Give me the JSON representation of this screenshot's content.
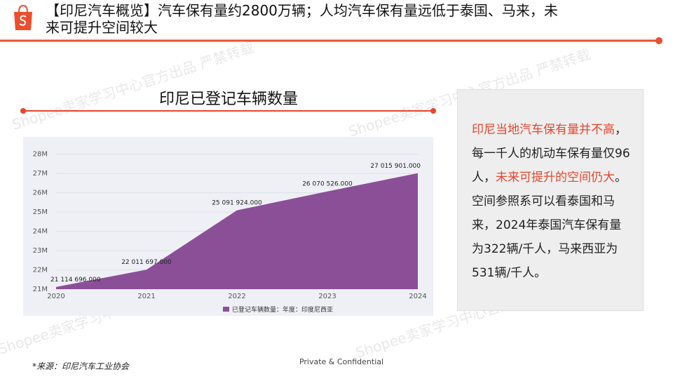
{
  "header": {
    "title_line1": "【印尼汽车概览】汽车保有量约2800万辆；人均汽车保有量远低于泰国、马来，未",
    "title_line2": "来可提升空间较大"
  },
  "watermark": "Shopee卖家学习中心官方出品 严禁转载",
  "chart_data": {
    "type": "area",
    "title": "印尼已登记车辆数量",
    "color": "#8b4f98",
    "x": [
      2020,
      2021,
      2022,
      2023,
      2024
    ],
    "xlim": [
      2020,
      2024
    ],
    "xticks": [
      2020,
      2021,
      2022,
      2023,
      2024
    ],
    "series": [
      {
        "name": "已登记车辆数量：年度：印度尼西亚",
        "color": "#8b4f98",
        "values": [
          21114696,
          22011697,
          25091924,
          26070526,
          27015901
        ],
        "value_labels": [
          "21 114 696.000",
          "22 011 697.000",
          "25 091 924.000",
          "26 070 526.000",
          "27 015 901.000"
        ]
      }
    ],
    "ylim": [
      21000000,
      28500000
    ],
    "yticks": [
      {
        "value": 21000000,
        "label": "21M"
      },
      {
        "value": 22000000,
        "label": "22M"
      },
      {
        "value": 23000000,
        "label": "23M"
      },
      {
        "value": 24000000,
        "label": "24M"
      },
      {
        "value": 25000000,
        "label": "25M"
      },
      {
        "value": 26000000,
        "label": "26M"
      },
      {
        "value": 27000000,
        "label": "27M"
      },
      {
        "value": 28000000,
        "label": "28M"
      }
    ],
    "grid": true
  },
  "panel": {
    "paragraphs": [
      [
        {
          "text": "印尼当地汽车保有量并不高",
          "highlight": true
        },
        {
          "text": "，每一千人的机动车保有量仅96人，",
          "highlight": false
        },
        {
          "text": "未来可提升的空间仍大",
          "highlight": true
        },
        {
          "text": "。",
          "highlight": false
        }
      ],
      [
        {
          "text": "空间参照系可以看泰国和马来，2024年泰国汽车保有量为322辆/千人，马来西亚为531辆/千人。",
          "highlight": false
        }
      ]
    ]
  },
  "footer": {
    "source": "*来源：印尼汽车工业协会",
    "confidential": "Private & Confidential"
  }
}
